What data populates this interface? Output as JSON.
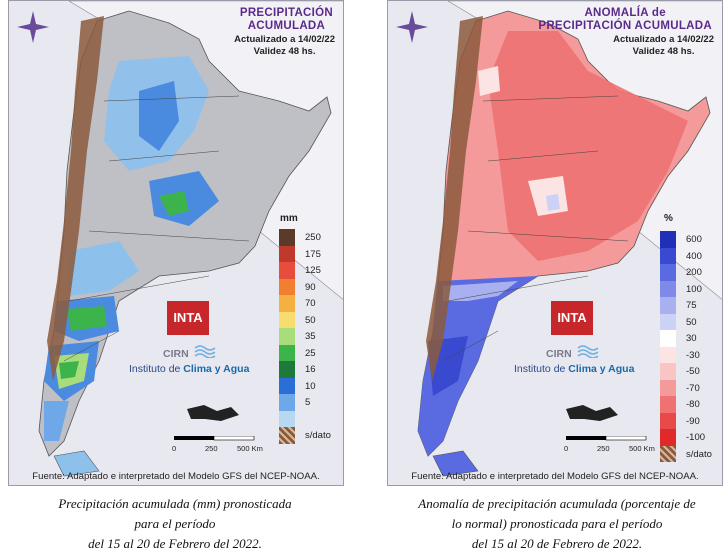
{
  "left_map": {
    "title_line1": "PRECIPITACIÓN",
    "title_line2": "ACUMULADA",
    "updated": "Actualizado a 14/02/22",
    "validity": "Validez 48 hs.",
    "unit": "mm",
    "legend": [
      {
        "label": "250",
        "color": "#5b3a29"
      },
      {
        "label": "175",
        "color": "#c0392b"
      },
      {
        "label": "125",
        "color": "#e74c3c"
      },
      {
        "label": "90",
        "color": "#f08030"
      },
      {
        "label": "70",
        "color": "#f5b041"
      },
      {
        "label": "50",
        "color": "#f7dc6f"
      },
      {
        "label": "35",
        "color": "#a9dc7a"
      },
      {
        "label": "25",
        "color": "#3cb44b"
      },
      {
        "label": "16",
        "color": "#1e7a3a"
      },
      {
        "label": "10",
        "color": "#2a6fd6"
      },
      {
        "label": "5",
        "color": "#6fa8e8"
      },
      {
        "label": "",
        "color": "#b8d8f2"
      },
      {
        "label": "s/dato",
        "color": "#8b5a3c"
      }
    ],
    "footer": "Fuente: Adaptado e interpretado del Modelo GFS del NCEP-NOAA."
  },
  "right_map": {
    "title_line1": "ANOMALÍA de",
    "title_line2": "PRECIPITACIÓN ACUMULADA",
    "updated": "Actualizado a 14/02/22",
    "validity": "Validez 48 hs.",
    "unit": "%",
    "legend": [
      {
        "label": "600",
        "color": "#1f2fb8"
      },
      {
        "label": "400",
        "color": "#3a4ad0"
      },
      {
        "label": "200",
        "color": "#5a6ae0"
      },
      {
        "label": "100",
        "color": "#7f8ae8"
      },
      {
        "label": "75",
        "color": "#a8b0f0"
      },
      {
        "label": "50",
        "color": "#ccd2f6"
      },
      {
        "label": "30",
        "color": "#ffffff"
      },
      {
        "label": "-30",
        "color": "#fde4e4"
      },
      {
        "label": "-50",
        "color": "#f9c4c4"
      },
      {
        "label": "-70",
        "color": "#f49a9a"
      },
      {
        "label": "-80",
        "color": "#ee7272"
      },
      {
        "label": "-90",
        "color": "#e84a4a"
      },
      {
        "label": "-100",
        "color": "#e02a2a"
      },
      {
        "label": "s/dato",
        "color": "#8b5a3c"
      }
    ],
    "footer": "Fuente: Adaptado e interpretado del Modelo GFS del NCEP-NOAA."
  },
  "logo": {
    "inta": "INTA",
    "cirn": "CIRN",
    "institute_prefix": "Instituto de",
    "institute_bold": "Clima y Agua"
  },
  "scale": {
    "l0": "0",
    "l1": "250",
    "l2": "500 Km"
  },
  "captions": {
    "left_l1": "Precipitación acumulada (mm) pronosticada",
    "left_l2": "para el período",
    "left_l3": "del 15 al 20 de Febrero del 2022.",
    "right_l1": "Anomalía de precipitación acumulada (porcentaje de",
    "right_l2": "lo normal) pronosticada para el período",
    "right_l3": "del 15 al 20 de Febrero de 2022."
  }
}
